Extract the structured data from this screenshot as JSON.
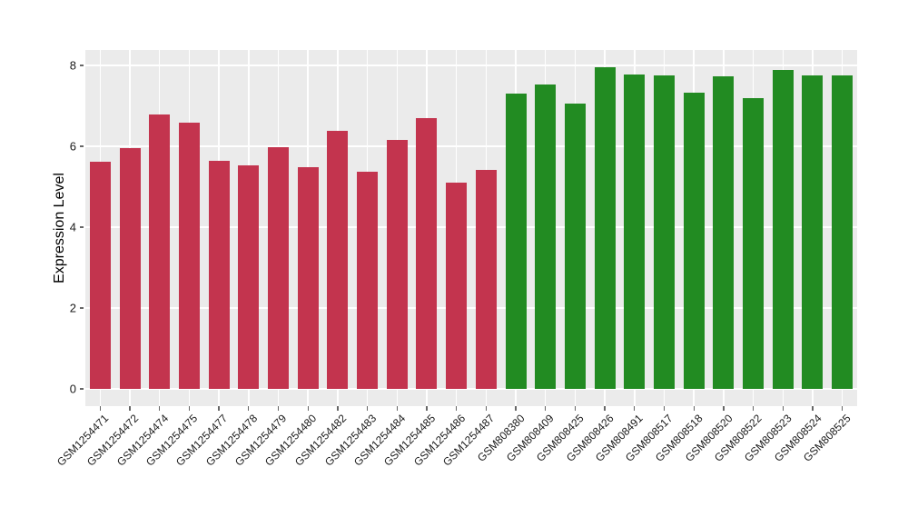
{
  "chart_data": {
    "type": "bar",
    "title": "",
    "xlabel": "",
    "ylabel": "Expression Level",
    "yticks": [
      0,
      2,
      4,
      6,
      8
    ],
    "ylim": [
      0,
      8.4
    ],
    "grid": "on",
    "legend": "none",
    "categories": [
      "GSM1254471",
      "GSM1254472",
      "GSM1254474",
      "GSM1254475",
      "GSM1254477",
      "GSM1254478",
      "GSM1254479",
      "GSM1254480",
      "GSM1254482",
      "GSM1254483",
      "GSM1254484",
      "GSM1254485",
      "GSM1254486",
      "GSM1254487",
      "GSM808380",
      "GSM808409",
      "GSM808425",
      "GSM808426",
      "GSM808491",
      "GSM808517",
      "GSM808518",
      "GSM808520",
      "GSM808522",
      "GSM808523",
      "GSM808524",
      "GSM808525"
    ],
    "values": [
      5.62,
      5.96,
      6.79,
      6.58,
      5.64,
      5.53,
      5.98,
      5.48,
      6.38,
      5.37,
      6.16,
      6.7,
      5.1,
      5.42,
      7.3,
      7.52,
      7.06,
      7.95,
      7.78,
      7.75,
      7.33,
      7.73,
      7.18,
      7.88,
      7.75,
      7.75
    ],
    "bar_colors": [
      "#C3344E",
      "#C3344E",
      "#C3344E",
      "#C3344E",
      "#C3344E",
      "#C3344E",
      "#C3344E",
      "#C3344E",
      "#C3344E",
      "#C3344E",
      "#C3344E",
      "#C3344E",
      "#C3344E",
      "#C3344E",
      "#228B22",
      "#228B22",
      "#228B22",
      "#228B22",
      "#228B22",
      "#228B22",
      "#228B22",
      "#228B22",
      "#228B22",
      "#228B22",
      "#228B22",
      "#228B22"
    ]
  },
  "style": {
    "panel_bg": "#EBEBEB",
    "grid_color": "#FFFFFF",
    "group1_color": "#C3344E",
    "group2_color": "#228B22",
    "tick_color": "#666666",
    "text_color": "#1A1A1A"
  }
}
